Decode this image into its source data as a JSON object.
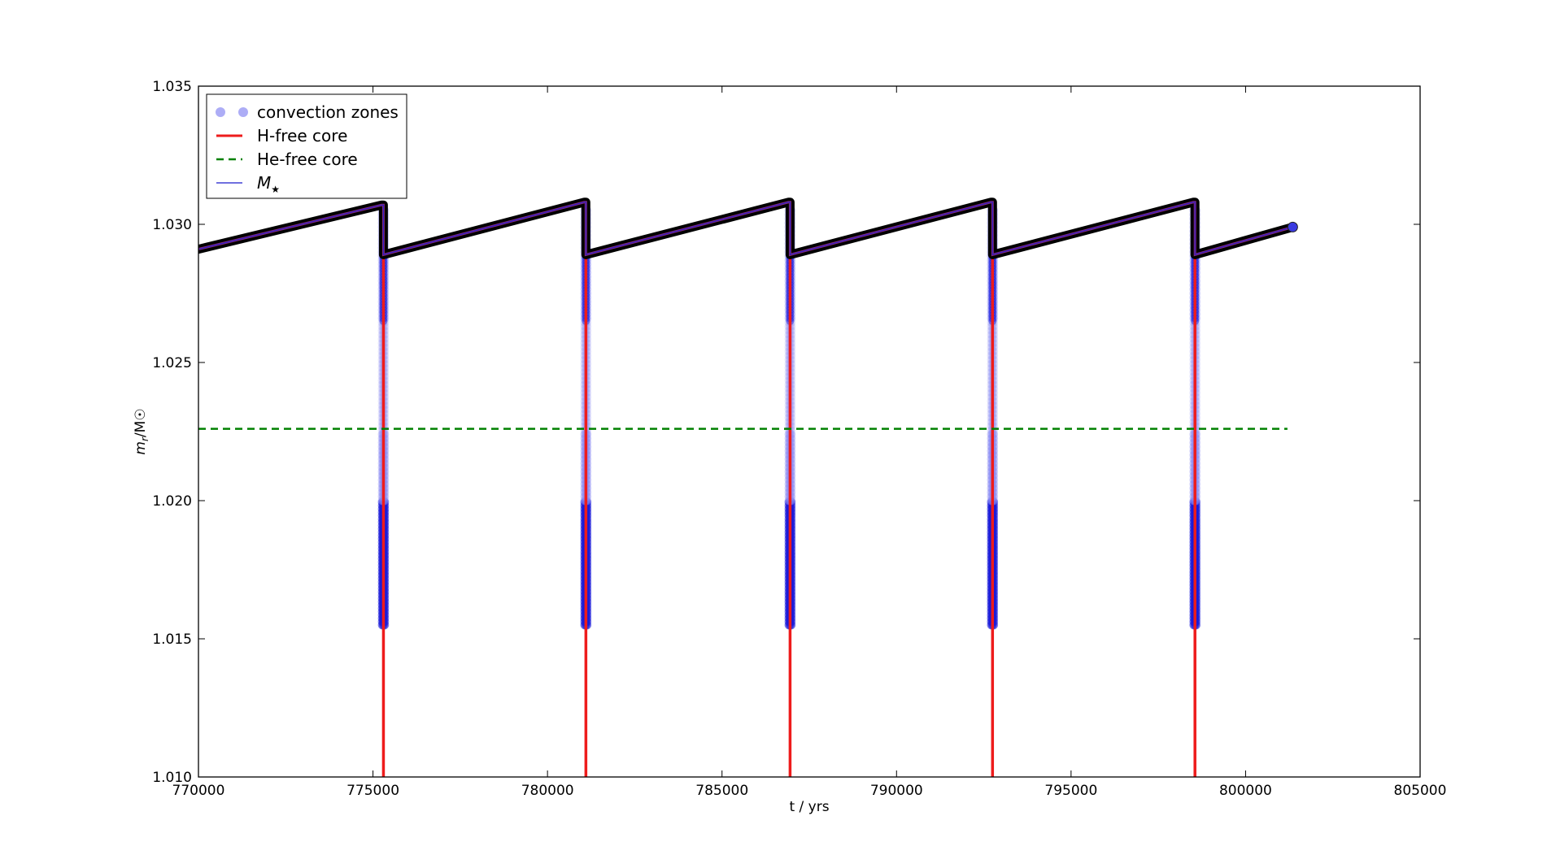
{
  "chart_data": {
    "type": "line",
    "xlabel": "t / yrs",
    "ylabel": "m",
    "ylabel_subscript": "r",
    "ylabel_unit": "/M☉",
    "xlim": [
      770000,
      805000
    ],
    "ylim": [
      1.01,
      1.035
    ],
    "x_ticks": [
      {
        "value": 770000,
        "label": "770000"
      },
      {
        "value": 775000,
        "label": "775000"
      },
      {
        "value": 780000,
        "label": "780000"
      },
      {
        "value": 785000,
        "label": "785000"
      },
      {
        "value": 790000,
        "label": "790000"
      },
      {
        "value": 795000,
        "label": "795000"
      },
      {
        "value": 800000,
        "label": "800000"
      },
      {
        "value": 805000,
        "label": "805000"
      }
    ],
    "y_ticks": [
      {
        "value": 1.01,
        "label": "1.010"
      },
      {
        "value": 1.015,
        "label": "1.015"
      },
      {
        "value": 1.02,
        "label": "1.020"
      },
      {
        "value": 1.025,
        "label": "1.025"
      },
      {
        "value": 1.03,
        "label": "1.030"
      },
      {
        "value": 1.035,
        "label": "1.035"
      }
    ],
    "grid": false,
    "legend_position": "top-left",
    "legend": [
      {
        "label": "convection zones",
        "style": "markers",
        "color": "#8a8af2"
      },
      {
        "label": "H-free core",
        "style": "solid",
        "color": "#ee1c1c"
      },
      {
        "label": "He-free core",
        "style": "dashed",
        "color": "#008000"
      },
      {
        "label": "M",
        "label_subscript": "★",
        "style": "thin",
        "color": "#1a1acc"
      }
    ],
    "colors": {
      "convection_zones": "#8a8af2",
      "convection_dense": "#1a1ad9",
      "h_free_core": "#ee1c1c",
      "he_free_core": "#008000",
      "stellar_mass": "#1a1acc",
      "outline": "#000000"
    },
    "pulses": [
      {
        "t": 775300,
        "flash_peak": 1.0307,
        "post_flash": 1.0289
      },
      {
        "t": 781100,
        "flash_peak": 1.0308,
        "post_flash": 1.0289
      },
      {
        "t": 786950,
        "flash_peak": 1.0308,
        "post_flash": 1.0289
      },
      {
        "t": 792750,
        "flash_peak": 1.0308,
        "post_flash": 1.0289
      },
      {
        "t": 798550,
        "flash_peak": 1.0308,
        "post_flash": 1.0289
      }
    ],
    "stellar_mass_series": {
      "name": "M★",
      "x": [
        770000,
        775250,
        775300,
        775300,
        781050,
        781100,
        781100,
        786900,
        786950,
        786950,
        792700,
        792750,
        792750,
        798500,
        798550,
        798550,
        801350
      ],
      "y": [
        1.0291,
        1.0307,
        1.0307,
        1.0289,
        1.0308,
        1.0308,
        1.0289,
        1.0308,
        1.0308,
        1.0289,
        1.0308,
        1.0308,
        1.0289,
        1.0308,
        1.0308,
        1.0289,
        1.0299
      ]
    },
    "he_free_core_series": {
      "name": "He-free core",
      "x": [
        770000,
        801200
      ],
      "y": [
        1.0226,
        1.0226
      ]
    },
    "convection_zone_range": {
      "bottom": 1.0155,
      "top": 1.0306
    },
    "endpoint": {
      "x": 801350,
      "y": 1.0299
    }
  }
}
